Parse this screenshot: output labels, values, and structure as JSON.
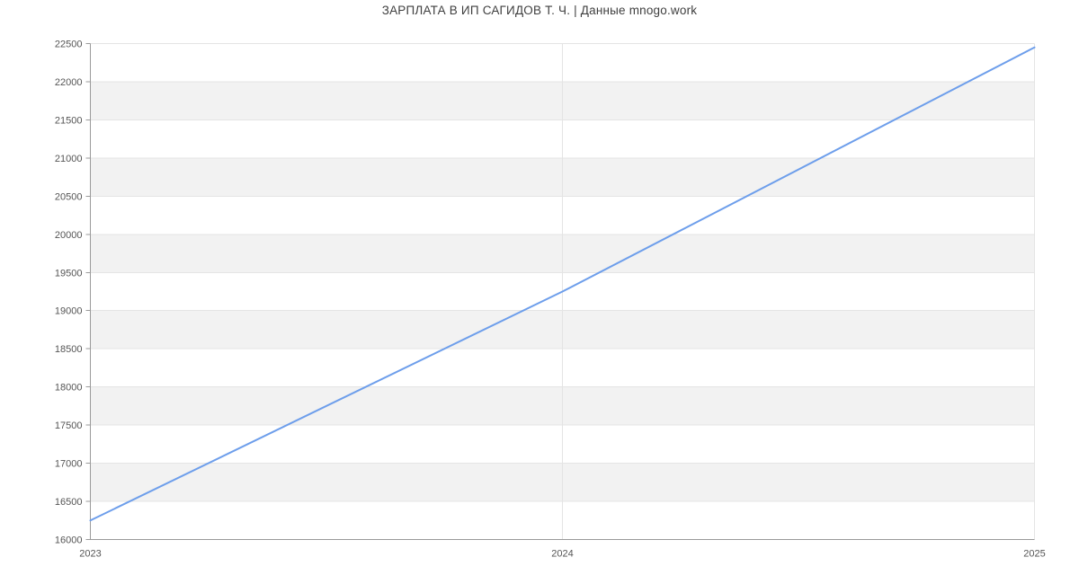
{
  "title": "ЗАРПЛАТА В ИП САГИДОВ Т. Ч. | Данные mnogo.work",
  "chart_data": {
    "type": "line",
    "title": "ЗАРПЛАТА В ИП САГИДОВ Т. Ч. | Данные mnogo.work",
    "x": [
      2023,
      2024,
      2025
    ],
    "xticklabels": [
      "2023",
      "2024",
      "2025"
    ],
    "series": [
      {
        "name": "Зарплата",
        "values": [
          16250,
          19250,
          22450
        ]
      }
    ],
    "xlabel": "",
    "ylabel": "",
    "xlim": [
      2023,
      2025
    ],
    "ylim": [
      16000,
      22500
    ],
    "ytick_step": 500,
    "yticks": [
      16000,
      16500,
      17000,
      17500,
      18000,
      18500,
      19000,
      19500,
      20000,
      20500,
      21000,
      21500,
      22000,
      22500
    ],
    "grid": true,
    "legend_position": "none",
    "band_pattern": "alternating horizontal 500-unit bands, gray from 16500-17000 upward every other band",
    "colors": {
      "line": "#6d9eeb",
      "band_gray": "#f2f2f2",
      "gridline": "#e4e4e4",
      "axis": "#9a9a9a",
      "tick_label": "#555555",
      "title_text": "#3f3f3f",
      "background": "#ffffff"
    }
  }
}
